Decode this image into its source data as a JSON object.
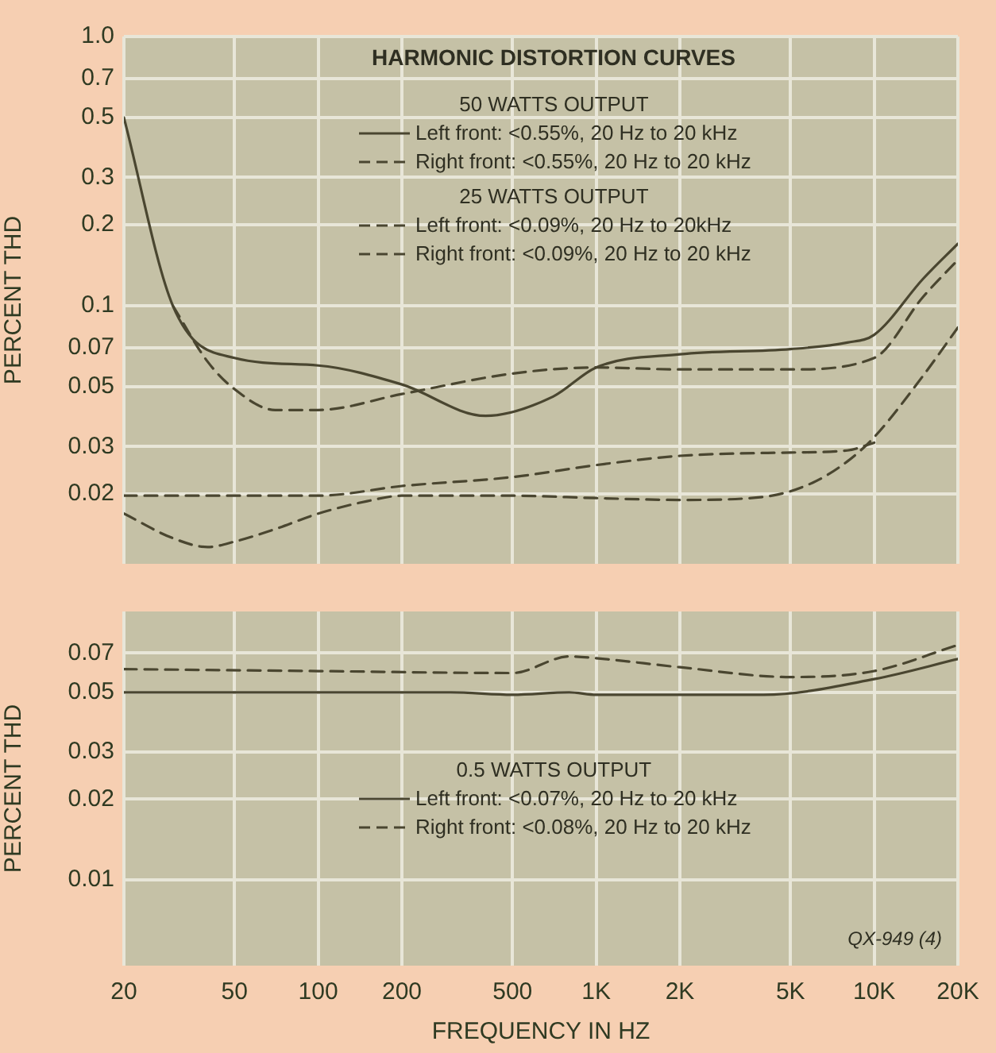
{
  "chart_data": [
    {
      "type": "line",
      "title": "HARMONIC DISTORTION CURVES",
      "ylabel": "PERCENT THD",
      "annotations": [
        "50 WATTS OUTPUT",
        "25 WATTS OUTPUT"
      ],
      "xlim": [
        20,
        20000
      ],
      "ylim": [
        0.011,
        1.0
      ],
      "xticks": [
        20,
        50,
        100,
        200,
        500,
        1000,
        2000,
        5000,
        10000,
        20000
      ],
      "yticks": [
        {
          "value": 1.0,
          "label": "1.0"
        },
        0.7,
        0.5,
        0.3,
        0.2,
        0.1,
        0.07,
        0.05,
        0.03,
        0.02
      ],
      "log": "xy",
      "grid": true,
      "legend": "top",
      "tick_labels": "y",
      "marker": "none",
      "series": [
        {
          "name": "Left front: <0.55%, 20 Hz to 20 kHz",
          "color": "#4a4630",
          "line_style": "solid",
          "x": [
            20,
            30,
            50,
            100,
            200,
            400,
            700,
            1000,
            2000,
            5000,
            8000,
            10000,
            15000,
            20000
          ],
          "values": [
            0.5,
            0.1,
            0.064,
            0.06,
            0.051,
            0.039,
            0.046,
            0.059,
            0.066,
            0.069,
            0.073,
            0.078,
            0.126,
            0.17
          ]
        },
        {
          "name": "Right front: <0.55%, 20 Hz to 20 kHz",
          "color": "#4a4630",
          "line_style": "dashed",
          "x": [
            30,
            40,
            50,
            70,
            100,
            200,
            500,
            1000,
            2000,
            5000,
            10000,
            15000,
            20000
          ],
          "values": [
            0.1,
            0.062,
            0.049,
            0.041,
            0.041,
            0.047,
            0.056,
            0.059,
            0.058,
            0.058,
            0.064,
            0.108,
            0.148
          ]
        },
        {
          "name": "Left front: <0.09%, 20 Hz to 20kHz",
          "color": "#4a4630",
          "line_style": "dashed",
          "x": [
            20,
            100,
            200,
            500,
            1000,
            2000,
            5000,
            8000,
            10000
          ],
          "values": [
            0.0197,
            0.0197,
            0.0214,
            0.0231,
            0.0256,
            0.0277,
            0.0285,
            0.029,
            0.031
          ]
        },
        {
          "name": "Right front: <0.09%, 20 Hz to 20 kHz",
          "color": "#4a4630",
          "line_style": "dashed",
          "x": [
            20,
            30,
            40,
            50,
            70,
            100,
            150,
            200,
            500,
            1000,
            2000,
            4000,
            6000,
            8000,
            10000,
            15000,
            20000
          ],
          "values": [
            0.0169,
            0.0137,
            0.0127,
            0.0133,
            0.0148,
            0.0169,
            0.0188,
            0.0197,
            0.0197,
            0.0193,
            0.019,
            0.0195,
            0.022,
            0.0264,
            0.0325,
            0.055,
            0.083
          ]
        }
      ]
    },
    {
      "type": "line",
      "ylabel": "PERCENT THD",
      "xlabel": "FREQUENCY IN HZ",
      "legend_title": "0.5 WATTS OUTPUT",
      "annotations": [
        "QX-949 (4)"
      ],
      "xlim": [
        20,
        20000
      ],
      "ylim": [
        0.0048,
        0.1
      ],
      "xticks": [
        20,
        50,
        100,
        200,
        500,
        {
          "value": 1000,
          "label": "1K"
        },
        {
          "value": 2000,
          "label": "2K"
        },
        {
          "value": 5000,
          "label": "5K"
        },
        {
          "value": 10000,
          "label": "10K"
        },
        {
          "value": 20000,
          "label": "20K"
        }
      ],
      "yticks": [
        0.07,
        0.05,
        0.03,
        0.02,
        0.01
      ],
      "log": "xy",
      "grid": true,
      "legend": "center",
      "marker": "none",
      "series": [
        {
          "name": "Left front: <0.07%, 20 Hz to 20 kHz",
          "color": "#4a4630",
          "line_style": "solid",
          "x": [
            20,
            100,
            300,
            500,
            800,
            1000,
            2000,
            4000,
            10000,
            20000
          ],
          "values": [
            0.05,
            0.05,
            0.05,
            0.049,
            0.05,
            0.049,
            0.049,
            0.049,
            0.056,
            0.0665
          ]
        },
        {
          "name": "Right front: <0.08%, 20 Hz to 20 kHz",
          "color": "#4a4630",
          "line_style": "dashed",
          "x": [
            20,
            100,
            500,
            800,
            1000,
            2000,
            5000,
            10000,
            20000
          ],
          "values": [
            0.061,
            0.06,
            0.059,
            0.068,
            0.067,
            0.062,
            0.057,
            0.06,
            0.075
          ]
        }
      ]
    }
  ]
}
